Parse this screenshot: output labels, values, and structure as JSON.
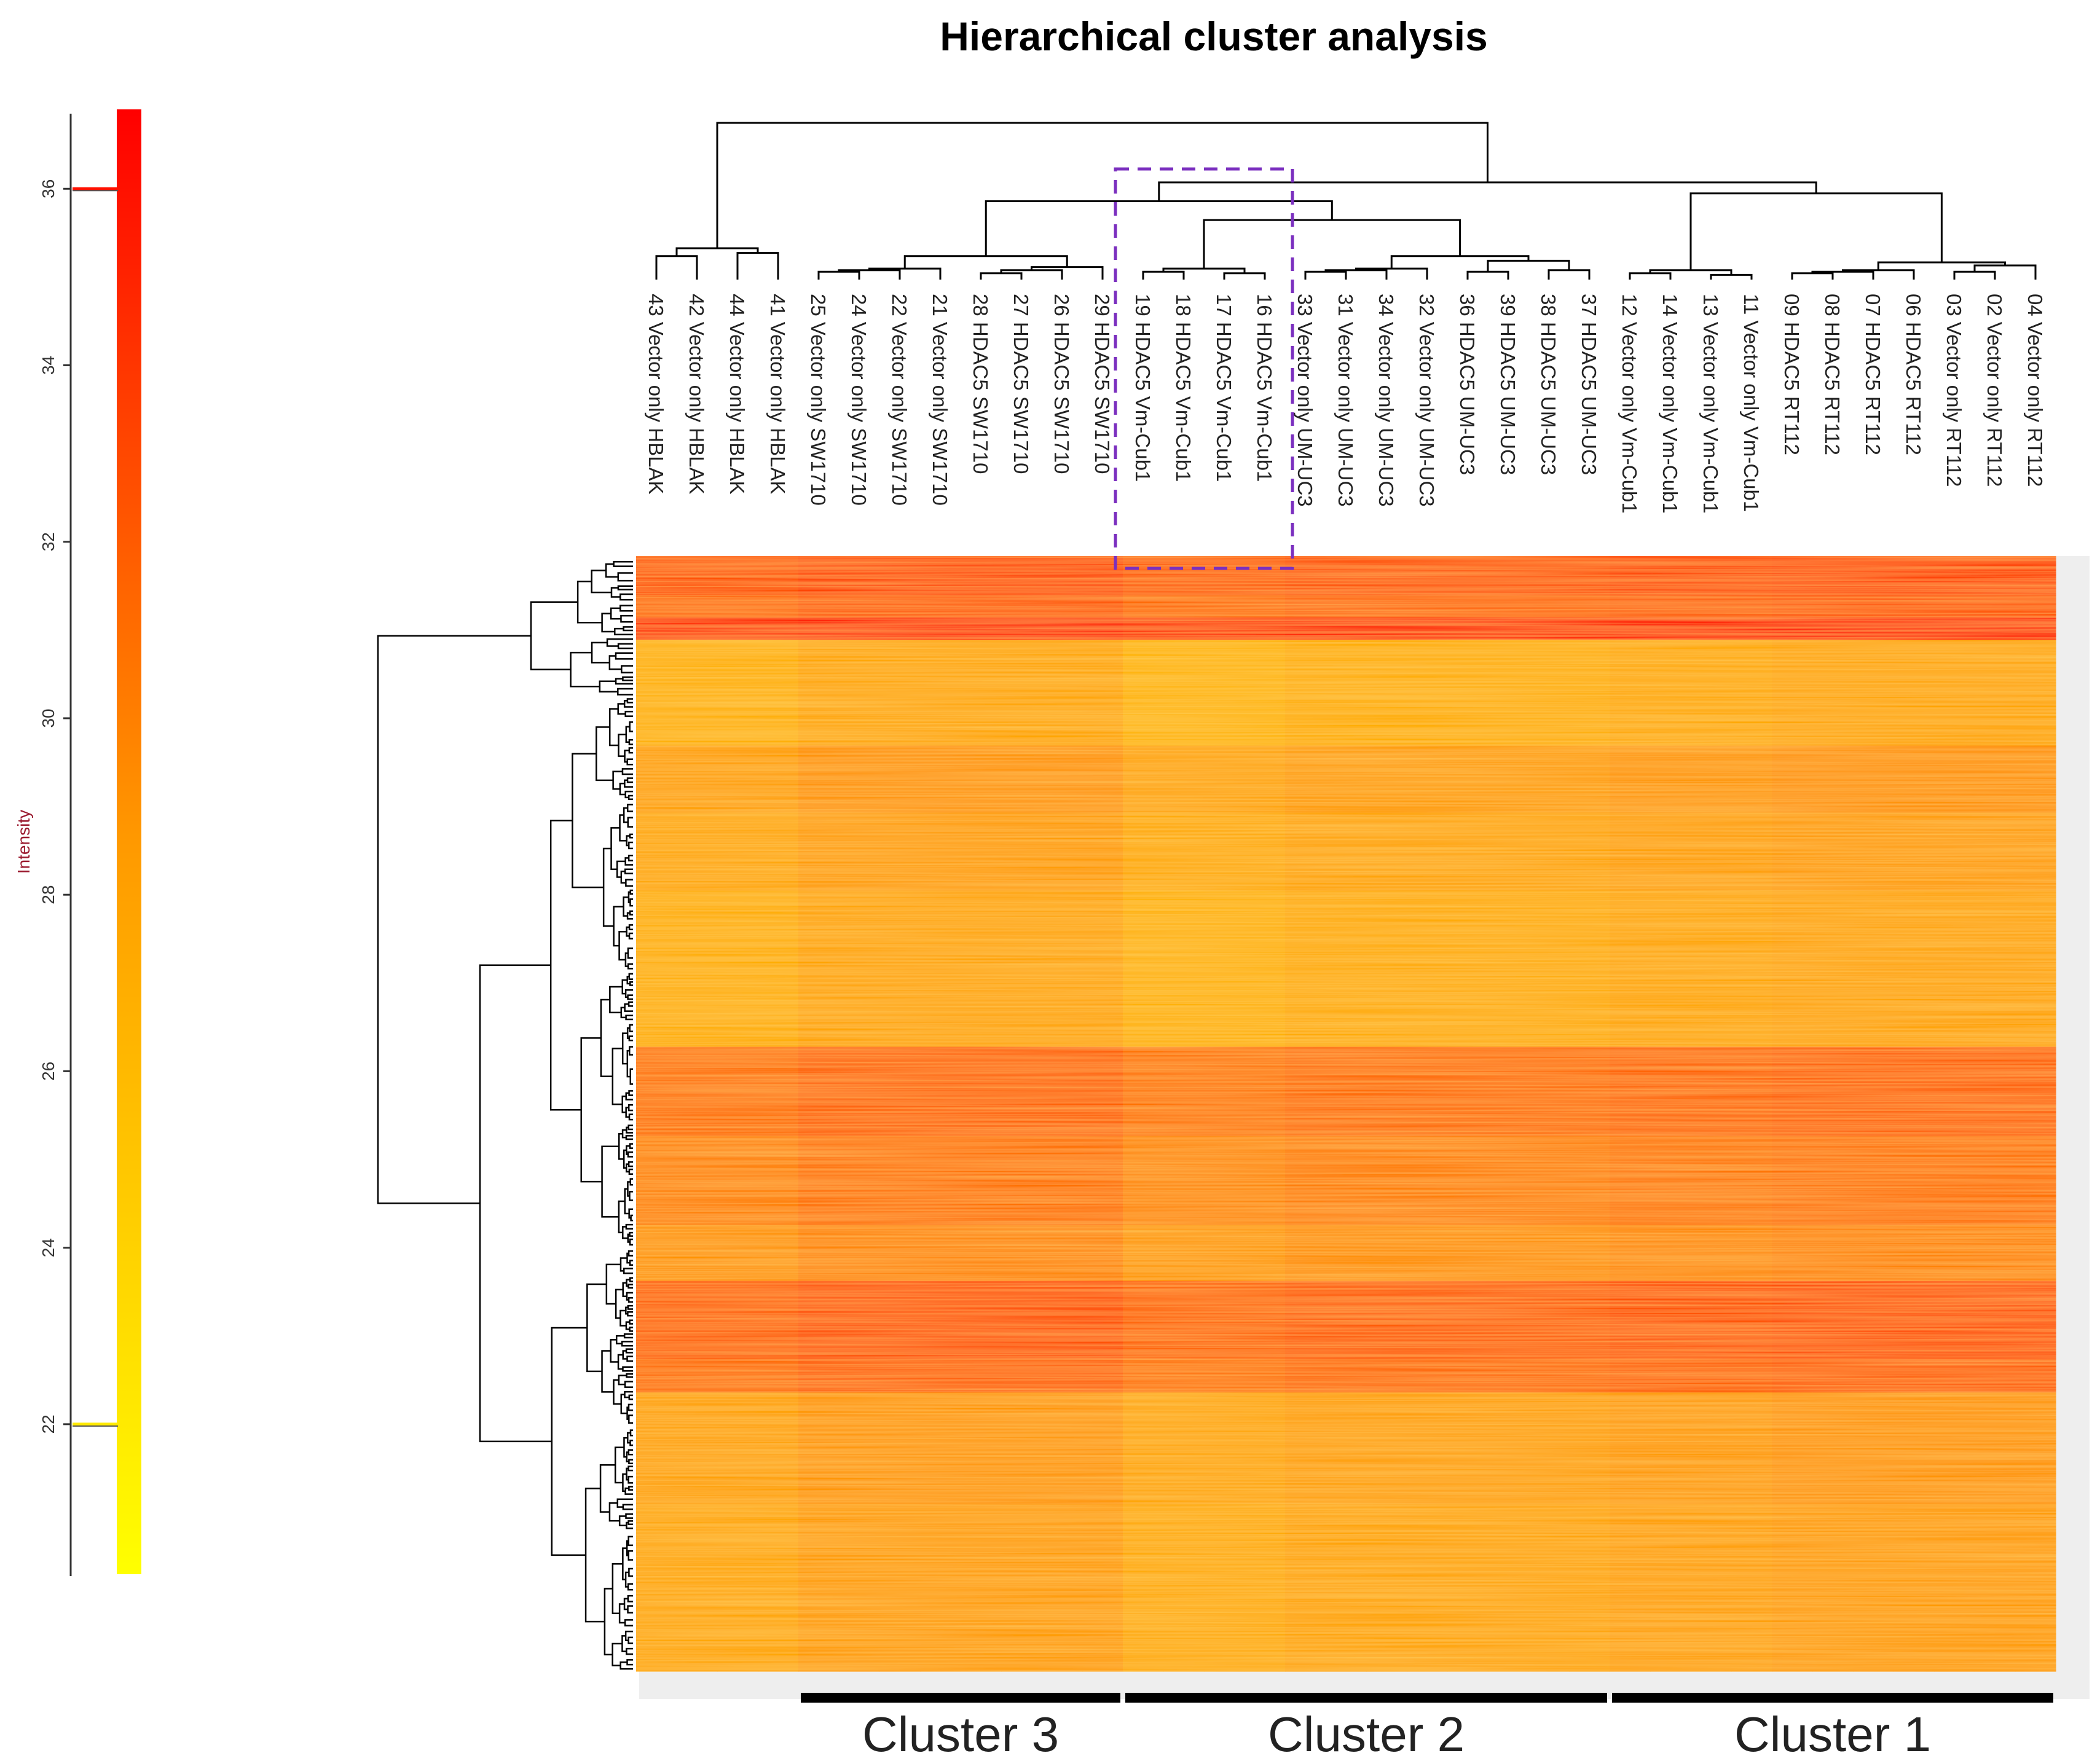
{
  "chart_data": {
    "type": "heatmap",
    "title": "Hierarchical cluster analysis",
    "colorbar": {
      "label": "Intensity",
      "min": 20.3,
      "max": 36.9,
      "ticks": [
        22,
        24,
        26,
        28,
        30,
        32,
        34,
        36
      ],
      "markers": [
        36,
        22
      ],
      "colors": [
        "#ffff00",
        "#ff9900",
        "#ff0000"
      ]
    },
    "columns": [
      "43 Vector only HBLAK",
      "42 Vector only HBLAK",
      "44 Vector only HBLAK",
      "41 Vector only HBLAK",
      "25 Vector only SW1710",
      "24 Vector only SW1710",
      "22 Vector only SW1710",
      "21 Vector only SW1710",
      "28 HDAC5 SW1710",
      "27 HDAC5 SW1710",
      "26 HDAC5 SW1710",
      "29 HDAC5 SW1710",
      "19 HDAC5 Vm-Cub1",
      "18 HDAC5 Vm-Cub1",
      "17 HDAC5 Vm-Cub1",
      "16 HDAC5 Vm-Cub1",
      "33 Vector only UM-UC3",
      "31 Vector only UM-UC3",
      "34 Vector only UM-UC3",
      "32 Vector only UM-UC3",
      "36 HDAC5 UM-UC3",
      "39 HDAC5 UM-UC3",
      "38 HDAC5 UM-UC3",
      "37 HDAC5 UM-UC3",
      "12 Vector only Vm-Cub1",
      "14 Vector only Vm-Cub1",
      "13 Vector only Vm-Cub1",
      "11 Vector only Vm-Cub1",
      "09 HDAC5 RT112",
      "08 HDAC5 RT112",
      "07 HDAC5 RT112",
      "06 HDAC5 RT112",
      "03 Vector only RT112",
      "02 Vector only RT112",
      "04 Vector only RT112"
    ],
    "row_bands": [
      {
        "from": 0.0,
        "to": 0.035,
        "intensity": 32.6
      },
      {
        "from": 0.035,
        "to": 0.055,
        "intensity": 31.6
      },
      {
        "from": 0.055,
        "to": 0.075,
        "intensity": 35.0
      },
      {
        "from": 0.075,
        "to": 0.17,
        "intensity": 26.8
      },
      {
        "from": 0.17,
        "to": 0.23,
        "intensity": 28.2
      },
      {
        "from": 0.23,
        "to": 0.3,
        "intensity": 27.6
      },
      {
        "from": 0.3,
        "to": 0.44,
        "intensity": 27.0
      },
      {
        "from": 0.44,
        "to": 0.52,
        "intensity": 31.0
      },
      {
        "from": 0.52,
        "to": 0.6,
        "intensity": 30.0
      },
      {
        "from": 0.6,
        "to": 0.65,
        "intensity": 29.0
      },
      {
        "from": 0.65,
        "to": 0.72,
        "intensity": 32.0
      },
      {
        "from": 0.72,
        "to": 0.75,
        "intensity": 31.2
      },
      {
        "from": 0.75,
        "to": 0.85,
        "intensity": 28.0
      },
      {
        "from": 0.85,
        "to": 1.0,
        "intensity": 27.6
      }
    ],
    "column_groups": [
      {
        "from": 0,
        "to": 4,
        "offset": 0.0
      },
      {
        "from": 4,
        "to": 12,
        "offset": 0.8
      },
      {
        "from": 12,
        "to": 16,
        "offset": -0.3
      },
      {
        "from": 16,
        "to": 24,
        "offset": 0.2
      },
      {
        "from": 24,
        "to": 28,
        "offset": 0.6
      },
      {
        "from": 28,
        "to": 35,
        "offset": 0.9
      }
    ],
    "highlight": {
      "columns": [
        12,
        15
      ],
      "style": "dashed",
      "color": "#7b2fbf"
    },
    "clusters": [
      {
        "label": "Cluster 3",
        "columns": [
          4,
          11
        ]
      },
      {
        "label": "Cluster 2",
        "columns": [
          12,
          23
        ]
      },
      {
        "label": "Cluster 1",
        "columns": [
          24,
          34
        ]
      }
    ],
    "column_dendrogram": [
      [
        0,
        1,
        0.15
      ],
      [
        2,
        3,
        0.17
      ],
      [
        35,
        36,
        0.2
      ],
      [
        4,
        5,
        0.05
      ],
      [
        38,
        6,
        0.06
      ],
      [
        39,
        7,
        0.07
      ],
      [
        8,
        9,
        0.04
      ],
      [
        10,
        41,
        0.06
      ],
      [
        11,
        42,
        0.08
      ],
      [
        40,
        43,
        0.15
      ],
      [
        12,
        13,
        0.05
      ],
      [
        14,
        15,
        0.04
      ],
      [
        45,
        46,
        0.07
      ],
      [
        16,
        17,
        0.05
      ],
      [
        48,
        18,
        0.06
      ],
      [
        49,
        19,
        0.07
      ],
      [
        20,
        21,
        0.05
      ],
      [
        22,
        23,
        0.06
      ],
      [
        51,
        52,
        0.12
      ],
      [
        50,
        53,
        0.15
      ],
      [
        47,
        54,
        0.38
      ],
      [
        44,
        55,
        0.5
      ],
      [
        24,
        25,
        0.04
      ],
      [
        26,
        27,
        0.03
      ],
      [
        57,
        58,
        0.06
      ],
      [
        28,
        29,
        0.04
      ],
      [
        60,
        30,
        0.05
      ],
      [
        61,
        31,
        0.06
      ],
      [
        32,
        33,
        0.05
      ],
      [
        63,
        34,
        0.09
      ],
      [
        62,
        64,
        0.11
      ],
      [
        59,
        65,
        0.55
      ],
      [
        56,
        66,
        0.62
      ],
      [
        37,
        67,
        1.0
      ]
    ]
  }
}
